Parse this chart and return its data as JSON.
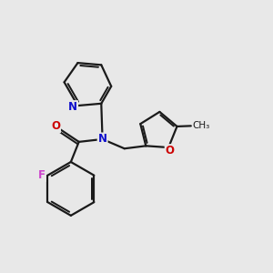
{
  "bg_color": "#e8e8e8",
  "bond_color": "#1a1a1a",
  "bond_width": 1.6,
  "atom_colors": {
    "N": "#1010cc",
    "O": "#cc0000",
    "F": "#cc44cc",
    "C": "#1a1a1a"
  }
}
